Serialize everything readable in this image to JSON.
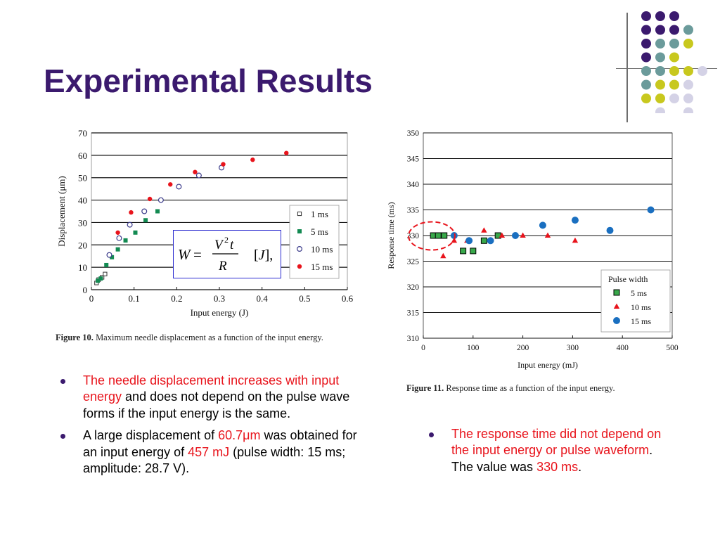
{
  "slide": {
    "title": "Experimental Results"
  },
  "figure10": {
    "caption_label": "Figure 10.",
    "caption_text": "Maximum needle displacement as a function of the input energy.",
    "formula": "W = V²t / R   [J],"
  },
  "figure11": {
    "caption_label": "Figure 11.",
    "caption_text": "Response time as a function of the input energy."
  },
  "bullets_left": [
    {
      "red": "The needle displacement increases with input energy",
      "rest": " and does not depend on the pulse wave forms if the input energy is the same."
    },
    {
      "pre": "A large displacement of ",
      "red1": "60.7μm",
      "mid": " was obtained for an input energy of ",
      "red2": "457 mJ",
      "post": " (pulse width: 15 ms; amplitude: 28.7 V)."
    }
  ],
  "bullets_right": [
    {
      "red": "The response time did not depend on the input energy or pulse waveform",
      "mid": ". The value was ",
      "red2": "330 ms",
      "post": "."
    }
  ],
  "colors": {
    "title": "#3b1a6e",
    "emphasis_red": "#e8141c",
    "dot_purple": "#3b1a6e",
    "dot_teal": "#6b9b9b",
    "dot_yellow": "#c8c81e",
    "dot_lavender": "#d4d2e6"
  },
  "chart_data": [
    {
      "type": "scatter",
      "xlabel": "Input energy (J)",
      "ylabel": "Displacement (μm)",
      "xlim": [
        0,
        0.6
      ],
      "ylim": [
        0,
        70
      ],
      "xticks": [
        "0",
        "0.1",
        "0.2",
        "0.3",
        "0.4",
        "0.5",
        "0.6"
      ],
      "yticks": [
        "0",
        "10",
        "20",
        "30",
        "40",
        "50",
        "60",
        "70"
      ],
      "grid": "horizontal",
      "legend_position": "right",
      "series": [
        {
          "name": "1 ms",
          "marker": "open-square",
          "color": "#333333",
          "x": [
            0.012,
            0.017,
            0.025,
            0.032
          ],
          "y": [
            3,
            4.5,
            5.5,
            7
          ]
        },
        {
          "name": "5 ms",
          "marker": "filled-square",
          "color": "#138a52",
          "x": [
            0.015,
            0.022,
            0.035,
            0.048,
            0.062,
            0.08,
            0.103,
            0.127,
            0.155
          ],
          "y": [
            4,
            5,
            11,
            14.5,
            18,
            22,
            25.5,
            31,
            35
          ]
        },
        {
          "name": "10 ms",
          "marker": "open-circle",
          "color": "#3a3a8a",
          "x": [
            0.042,
            0.065,
            0.09,
            0.124,
            0.163,
            0.205,
            0.252,
            0.305
          ],
          "y": [
            15.5,
            23,
            29,
            35,
            40,
            46,
            51,
            54.5
          ]
        },
        {
          "name": "15 ms",
          "marker": "filled-circle",
          "color": "#e8141c",
          "x": [
            0.062,
            0.093,
            0.137,
            0.185,
            0.243,
            0.309,
            0.378,
            0.457
          ],
          "y": [
            25.5,
            34.5,
            40.5,
            47,
            52.5,
            56,
            58,
            61
          ]
        }
      ]
    },
    {
      "type": "scatter",
      "xlabel": "Input energy (mJ)",
      "ylabel": "Response time (ms)",
      "xlim": [
        0,
        500
      ],
      "ylim": [
        310,
        350
      ],
      "xticks": [
        "0",
        "100",
        "200",
        "300",
        "400",
        "500"
      ],
      "yticks": [
        "310",
        "315",
        "320",
        "325",
        "330",
        "335",
        "340",
        "345",
        "350"
      ],
      "grid": "horizontal",
      "legend_position": "bottom-right",
      "legend_title": "Pulse width",
      "series": [
        {
          "name": "5 ms",
          "marker": "filled-square",
          "color": "#38a84a",
          "x": [
            20,
            30,
            42,
            80,
            100,
            122,
            150
          ],
          "y": [
            330,
            330,
            330,
            327,
            327,
            329,
            330
          ]
        },
        {
          "name": "10 ms",
          "marker": "triangle",
          "color": "#e8141c",
          "x": [
            40,
            62,
            88,
            122,
            158,
            200,
            250,
            305
          ],
          "y": [
            326,
            329,
            329,
            331,
            330,
            330,
            330,
            329
          ]
        },
        {
          "name": "15 ms",
          "marker": "filled-circle",
          "color": "#1a6fc0",
          "x": [
            62,
            92,
            135,
            185,
            240,
            305,
            375,
            457
          ],
          "y": [
            330,
            329,
            329,
            330,
            332,
            333,
            331,
            335
          ]
        }
      ]
    }
  ]
}
